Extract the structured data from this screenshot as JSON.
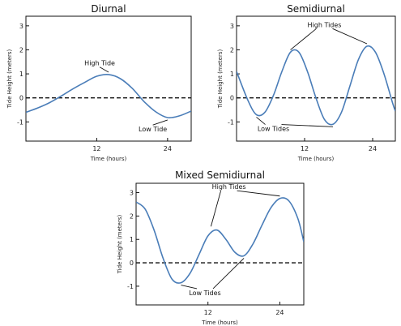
{
  "chart_data": [
    {
      "type": "line",
      "title": "Diurnal",
      "xlabel": "Time (hours)",
      "ylabel": "Tide Height (meters)",
      "xticks": [
        12,
        24
      ],
      "yticks": [
        -1,
        0,
        1,
        2,
        3
      ],
      "xlim": [
        0,
        28
      ],
      "ylim": [
        -1.8,
        3.4
      ],
      "reference_line_y": 0,
      "series": [
        {
          "x": [
            0,
            2,
            4,
            6,
            8,
            10,
            12,
            14,
            16,
            18,
            20,
            22,
            24,
            26,
            28
          ],
          "y": [
            -0.6,
            -0.42,
            -0.2,
            0.08,
            0.38,
            0.65,
            0.9,
            0.97,
            0.8,
            0.4,
            -0.15,
            -0.58,
            -0.82,
            -0.75,
            -0.55
          ]
        }
      ],
      "annotations": [
        {
          "text": "High Tide",
          "x": 12.5,
          "y": 1.35,
          "point": [
            14,
            0.97
          ]
        },
        {
          "text": "Low Tide",
          "x": 21.5,
          "y": -1.4,
          "point": [
            24,
            -0.82
          ]
        }
      ]
    },
    {
      "type": "line",
      "title": "Semidiurnal",
      "xlabel": "Time (hours)",
      "ylabel": "Tide Height (meters)",
      "xticks": [
        12,
        24
      ],
      "yticks": [
        -1,
        0,
        1,
        2,
        3
      ],
      "xlim": [
        0,
        28
      ],
      "ylim": [
        -1.8,
        3.4
      ],
      "reference_line_y": 0,
      "series": [
        {
          "x": [
            0,
            2,
            3.5,
            5,
            6.5,
            8,
            9.5,
            11,
            12.5,
            14,
            15.5,
            17,
            18.5,
            20,
            21.5,
            23,
            24.5,
            26,
            27.5,
            28
          ],
          "y": [
            1.1,
            -0.1,
            -0.7,
            -0.6,
            0.1,
            1.1,
            1.9,
            1.9,
            1.1,
            0.0,
            -0.9,
            -1.1,
            -0.6,
            0.5,
            1.6,
            2.15,
            1.9,
            1.0,
            -0.2,
            -0.55
          ]
        }
      ],
      "annotations": [
        {
          "text": "High Tides",
          "x": 15.5,
          "y": 2.95,
          "points": [
            [
              9.5,
              1.9
            ],
            [
              23,
              2.15
            ]
          ]
        },
        {
          "text": "Low Tides",
          "x": 6.5,
          "y": -1.38,
          "points": [
            [
              3.5,
              -0.7
            ],
            [
              17,
              -1.1
            ]
          ]
        }
      ]
    },
    {
      "type": "line",
      "title": "Mixed Semidiurnal",
      "xlabel": "Time (hours)",
      "ylabel": "Tide Height (meters)",
      "xticks": [
        12,
        24
      ],
      "yticks": [
        -1,
        0,
        1,
        2,
        3
      ],
      "xlim": [
        0,
        28
      ],
      "ylim": [
        -1.8,
        3.4
      ],
      "reference_line_y": 0,
      "series": [
        {
          "x": [
            0,
            1.5,
            3,
            4.5,
            6,
            7.5,
            9,
            10.5,
            12,
            13.5,
            15,
            16.5,
            18,
            19.5,
            21,
            22.5,
            24,
            25.5,
            27,
            28
          ],
          "y": [
            2.6,
            2.3,
            1.4,
            0.2,
            -0.7,
            -0.85,
            -0.45,
            0.35,
            1.15,
            1.4,
            1.0,
            0.45,
            0.3,
            0.8,
            1.6,
            2.35,
            2.75,
            2.65,
            1.9,
            0.9
          ]
        }
      ],
      "annotations": [
        {
          "text": "High Tides",
          "x": 15.5,
          "y": 3.15,
          "points": [
            [
              12.5,
              1.45
            ],
            [
              24,
              2.75
            ]
          ]
        },
        {
          "text": "Low Tides",
          "x": 11.5,
          "y": -1.38,
          "points": [
            [
              7.5,
              -0.85
            ],
            [
              18,
              0.3
            ]
          ]
        }
      ]
    }
  ]
}
